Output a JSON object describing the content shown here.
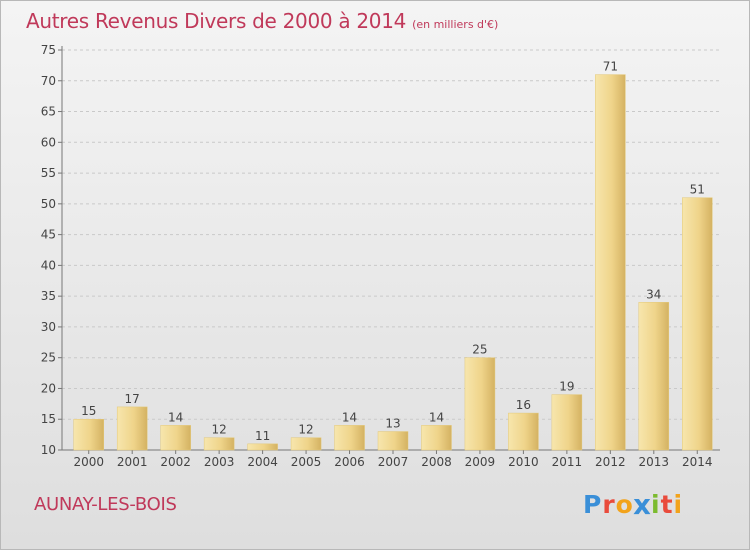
{
  "title": "Autres Revenus Divers de 2000 à 2014",
  "subtitle": "(en milliers d'€)",
  "location": "AUNAY-LES-BOIS",
  "brand": "Proxiti",
  "colors": {
    "title": "#c0395a",
    "bar_light": "#f5df9e",
    "bar_dark": "#d9b867",
    "brand_letters": [
      "#3a8fd8",
      "#e94b3c",
      "#f2a31b",
      "#3a8fd8",
      "#7cbb2f",
      "#e94b3c",
      "#f2a31b"
    ]
  },
  "chart_data": {
    "type": "bar",
    "title": "Autres Revenus Divers de 2000 à 2014",
    "subtitle": "(en milliers d'€)",
    "categories": [
      "2000",
      "2001",
      "2002",
      "2003",
      "2004",
      "2005",
      "2006",
      "2007",
      "2008",
      "2009",
      "2010",
      "2011",
      "2012",
      "2013",
      "2014"
    ],
    "values": [
      15,
      17,
      14,
      12,
      11,
      12,
      14,
      13,
      14,
      25,
      16,
      19,
      71,
      34,
      51
    ],
    "ylim": [
      10,
      75
    ],
    "yticks": [
      10,
      15,
      20,
      25,
      30,
      35,
      40,
      45,
      50,
      55,
      60,
      65,
      70,
      75
    ],
    "grid": true,
    "data_labels": true
  }
}
